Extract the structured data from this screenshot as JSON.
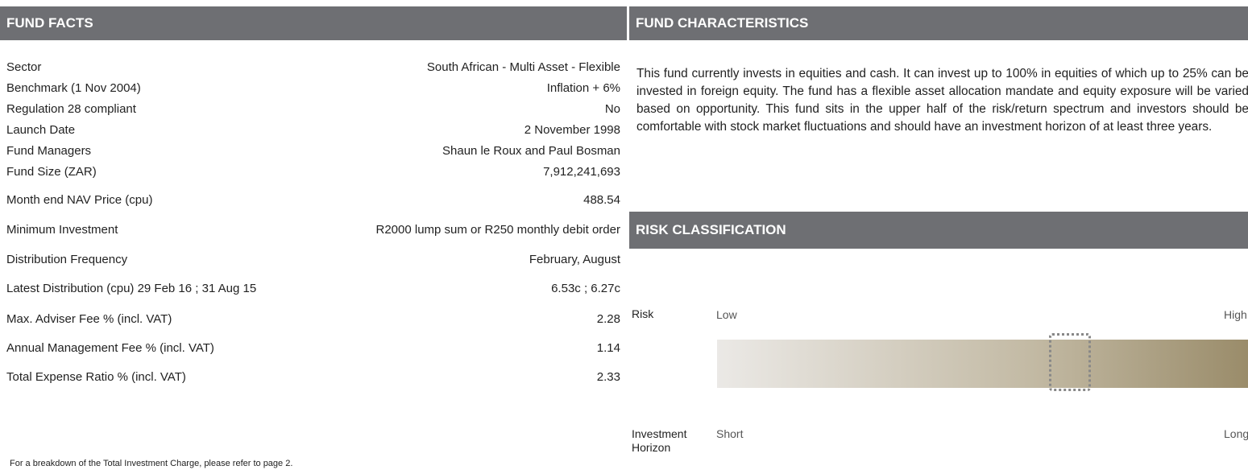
{
  "fund_facts": {
    "title": "FUND FACTS",
    "rows": [
      [
        "Sector",
        "South African - Multi Asset - Flexible"
      ],
      [
        "Benchmark (1 Nov 2004)",
        "Inflation + 6%"
      ],
      [
        "Regulation 28 compliant",
        "No"
      ],
      [
        "Launch Date",
        "2 November 1998"
      ],
      [
        "Fund Managers",
        "Shaun le Roux and Paul Bosman"
      ],
      [
        "Fund Size (ZAR)",
        "7,912,241,693"
      ],
      [
        "Month end NAV Price (cpu)",
        "488.54"
      ],
      [
        "Minimum Investment",
        "R2000 lump sum or R250 monthly debit order"
      ],
      [
        "Distribution Frequency",
        "February, August"
      ],
      [
        "Latest Distribution (cpu)  29 Feb 16 ; 31 Aug 15",
        "6.53c ; 6.27c"
      ],
      [
        "Max. Adviser Fee % (incl. VAT)",
        "2.28"
      ],
      [
        "Annual Management Fee % (incl. VAT)",
        "1.14"
      ],
      [
        "Total Expense Ratio % (incl. VAT)",
        "2.33"
      ]
    ],
    "footnote": "For a breakdown of the Total Investment Charge, please refer to page 2."
  },
  "fund_characteristics": {
    "title": "FUND CHARACTERISTICS",
    "text": "This fund currently invests in equities and cash. It can invest up to 100% in equities of which up to 25% can be invested in foreign equity. The fund has a flexible asset allocation mandate and equity exposure will be varied based on opportunity. This fund sits in the upper half of the risk/return spectrum and investors should be comfortable with stock market fluctuations and should have an investment horizon of at least three years."
  },
  "risk_classification": {
    "title": "RISK CLASSIFICATION",
    "risk_label": "Risk",
    "low": "Low",
    "high": "High",
    "horizon_label": "Investment Horizon",
    "short": "Short",
    "long": "Long"
  }
}
